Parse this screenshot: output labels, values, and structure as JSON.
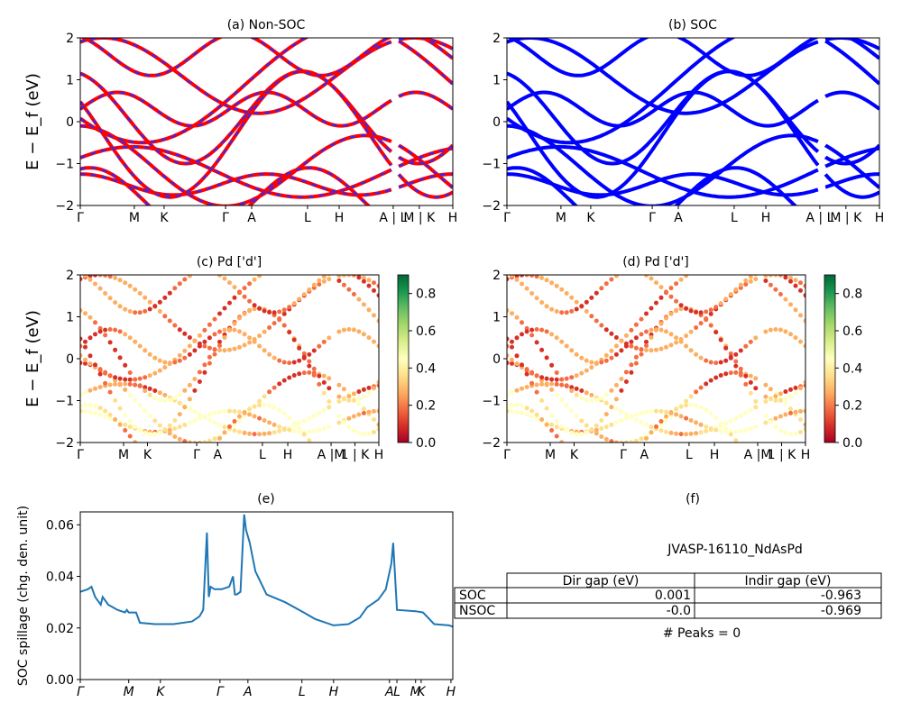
{
  "figure": {
    "colors": {
      "nonsoc_red": "#ff0000",
      "nonsoc_dash": "#2b2bff",
      "soc_blue": "#0000ff",
      "spillage_line": "#1f77b4",
      "cmap": "RdYlGn"
    }
  },
  "chart_data": [
    {
      "type": "line",
      "panel": "a",
      "title": "(a) Non-SOC",
      "ylabel": "E − E_f (eV)",
      "ylim": [
        -2,
        2
      ],
      "yticks": [
        "−2",
        "−1",
        "0",
        "1",
        "2"
      ],
      "xticks": [
        "Γ",
        "M",
        "K",
        "Γ",
        "A",
        "L",
        "H",
        "A | L",
        "M | K",
        "H"
      ],
      "series_style": "red solid with blue dashes"
    },
    {
      "type": "line",
      "panel": "b",
      "title": "(b) SOC",
      "ylim": [
        -2,
        2
      ],
      "yticks": [
        "−2",
        "−1",
        "0",
        "1",
        "2"
      ],
      "xticks": [
        "Γ",
        "M",
        "K",
        "Γ",
        "A",
        "L",
        "H",
        "A | L",
        "M | K",
        "H"
      ],
      "series_style": "blue"
    },
    {
      "type": "scatter",
      "panel": "c",
      "title": "(c)  Pd ['d']",
      "ylabel": "E − E_f (eV)",
      "ylim": [
        -2,
        2
      ],
      "yticks": [
        "−2",
        "−1",
        "0",
        "1",
        "2"
      ],
      "xticks": [
        "Γ",
        "M",
        "K",
        "Γ",
        "A",
        "L",
        "H",
        "A |M",
        "1 | K",
        "H"
      ],
      "colorbar": {
        "range": [
          0.0,
          0.9
        ],
        "ticks": [
          "0.0",
          "0.2",
          "0.4",
          "0.6",
          "0.8"
        ]
      }
    },
    {
      "type": "scatter",
      "panel": "d",
      "title": "(d) Pd ['d']",
      "ylim": [
        -2,
        2
      ],
      "yticks": [
        "−2",
        "−1",
        "0",
        "1",
        "2"
      ],
      "xticks": [
        "Γ",
        "M",
        "K",
        "Γ",
        "A",
        "L",
        "H",
        "A |M",
        "1 | K",
        "H"
      ],
      "colorbar": {
        "range": [
          0.0,
          0.9
        ],
        "ticks": [
          "0.0",
          "0.2",
          "0.4",
          "0.6",
          "0.8"
        ]
      }
    },
    {
      "type": "line",
      "panel": "e",
      "title": "(e)",
      "ylabel": "SOC spillage (chg. den. unit)",
      "ylim": [
        0.0,
        0.065
      ],
      "yticks": [
        "0.00",
        "0.02",
        "0.04",
        "0.06"
      ],
      "xticks": [
        "Γ",
        "M",
        "K",
        "Γ",
        "A",
        "L",
        "H",
        "A",
        "L",
        "M",
        "K",
        "H"
      ],
      "x": [
        0,
        0.02,
        0.03,
        0.04,
        0.05,
        0.055,
        0.06,
        0.075,
        0.1,
        0.12,
        0.125,
        0.13,
        0.15,
        0.16,
        0.2,
        0.25,
        0.3,
        0.32,
        0.33,
        0.34,
        0.345,
        0.35,
        0.36,
        0.38,
        0.4,
        0.41,
        0.415,
        0.42,
        0.43,
        0.44,
        0.445,
        0.455,
        0.47,
        0.5,
        0.55,
        0.6,
        0.63,
        0.68,
        0.72,
        0.75,
        0.77,
        0.8,
        0.82,
        0.835,
        0.84,
        0.85,
        0.9,
        0.92,
        0.95,
        0.99,
        1.0
      ],
      "y": [
        0.034,
        0.035,
        0.036,
        0.032,
        0.03,
        0.029,
        0.032,
        0.029,
        0.027,
        0.026,
        0.027,
        0.026,
        0.026,
        0.022,
        0.0215,
        0.0215,
        0.0225,
        0.0245,
        0.027,
        0.057,
        0.032,
        0.036,
        0.035,
        0.035,
        0.036,
        0.04,
        0.033,
        0.033,
        0.034,
        0.064,
        0.058,
        0.053,
        0.042,
        0.033,
        0.03,
        0.026,
        0.0235,
        0.021,
        0.0215,
        0.024,
        0.028,
        0.031,
        0.035,
        0.045,
        0.053,
        0.027,
        0.0265,
        0.026,
        0.0215,
        0.021,
        0.0205
      ]
    }
  ],
  "panel_f": {
    "title": "(f)",
    "material": "JVASP-16110_NdAsPd",
    "table": {
      "headers": [
        "",
        "Dir gap (eV)",
        "Indir gap (eV)"
      ],
      "rows": [
        [
          "SOC",
          "0.001",
          "-0.963"
        ],
        [
          "NSOC",
          "-0.0",
          "-0.969"
        ]
      ]
    },
    "peaks": "# Peaks = 0"
  }
}
